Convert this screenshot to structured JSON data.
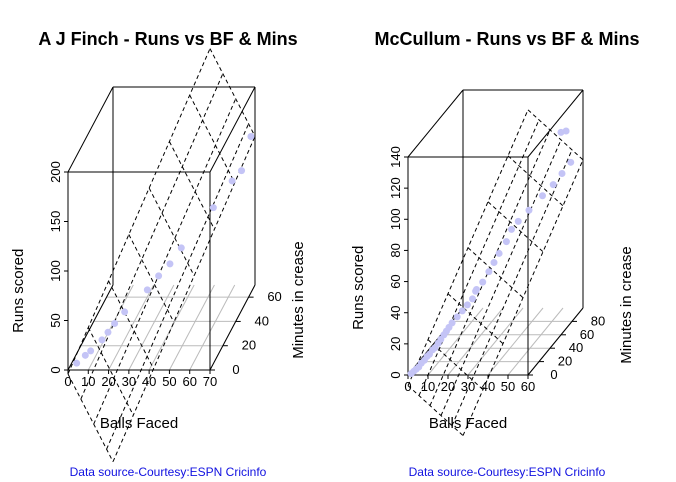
{
  "chart_data": [
    {
      "type": "scatter3d",
      "title": "A J Finch - Runs  vs BF & Mins",
      "x_label": "Balls Faced",
      "y_label": "Minutes in crease",
      "z_label": "Runs scored",
      "source": "Data source-Courtesy:ESPN Cricinfo",
      "color": "#c4c4f6",
      "x": [
        3,
        6,
        8,
        12,
        14,
        16,
        20,
        28,
        32,
        36,
        40,
        52,
        60,
        64,
        68
      ],
      "y": [
        4,
        8,
        10,
        15,
        18,
        22,
        25,
        35,
        40,
        45,
        50,
        62,
        66,
        68,
        70
      ],
      "z": [
        2,
        5,
        7,
        12,
        16,
        20,
        28,
        38,
        46,
        52,
        62,
        88,
        110,
        118,
        150
      ],
      "xlim": [
        0,
        70
      ],
      "xticks": [
        0,
        10,
        20,
        30,
        40,
        50,
        60,
        70
      ],
      "ylim": [
        0,
        70
      ],
      "yticks": [
        0,
        20,
        40,
        60
      ],
      "zlim": [
        0,
        200
      ],
      "zticks": [
        0,
        50,
        100,
        150,
        200
      ]
    },
    {
      "type": "scatter3d",
      "title": "McCullum - Runs  vs BF & Mins",
      "x_label": "Balls Faced",
      "y_label": "Minutes in crease",
      "z_label": "Runs scored",
      "source": "Data source-Courtesy:ESPN Cricinfo",
      "color": "#c4c4f6",
      "x": [
        1,
        2,
        3,
        4,
        5,
        6,
        7,
        8,
        9,
        10,
        11,
        12,
        13,
        14,
        15,
        16,
        18,
        20,
        22,
        24,
        25,
        26,
        28,
        30,
        32,
        34,
        36,
        38,
        40,
        44,
        48,
        52,
        55,
        58,
        60,
        62
      ],
      "y": [
        2,
        3,
        4,
        5,
        6,
        8,
        9,
        10,
        12,
        13,
        15,
        16,
        18,
        19,
        20,
        22,
        24,
        26,
        28,
        30,
        32,
        30,
        34,
        38,
        40,
        42,
        48,
        50,
        55,
        60,
        70,
        75,
        80,
        85,
        60,
        62
      ],
      "z": [
        0,
        1,
        2,
        3,
        5,
        6,
        8,
        9,
        11,
        12,
        14,
        16,
        18,
        20,
        22,
        24,
        27,
        30,
        33,
        36,
        40,
        42,
        45,
        50,
        55,
        60,
        65,
        72,
        75,
        80,
        85,
        90,
        95,
        100,
        130,
        130
      ],
      "xlim": [
        0,
        60
      ],
      "xticks": [
        0,
        10,
        20,
        30,
        40,
        50,
        60
      ],
      "ylim": [
        0,
        100
      ],
      "yticks": [
        0,
        20,
        40,
        60,
        80
      ],
      "zlim": [
        0,
        140
      ],
      "zticks": [
        0,
        20,
        40,
        60,
        80,
        100,
        120,
        140
      ]
    }
  ]
}
